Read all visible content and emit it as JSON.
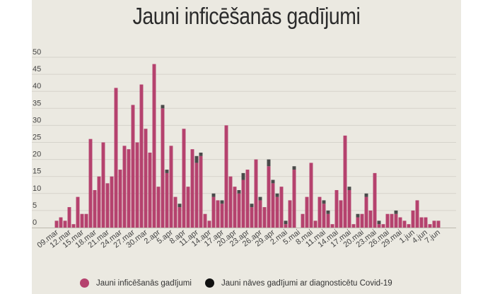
{
  "title": "Jauni inficēšanās gadījumi",
  "colors": {
    "cases": "#b5426e",
    "deaths": "#4a4a4a",
    "background": "#ebe9e1",
    "grid": "#d6d3cb"
  },
  "legend": {
    "cases": "Jauni inficēšanās gadījumi",
    "deaths": "Jauni nāves gadījumi ar diagnosticētu Covid-19"
  },
  "chart_data": {
    "type": "bar",
    "stacked": true,
    "title": "Jauni inficēšanās gadījumi",
    "ylim": [
      0,
      50
    ],
    "yticks": [
      0,
      5,
      10,
      15,
      20,
      25,
      30,
      35,
      40,
      45,
      50
    ],
    "grid": true,
    "legend_position": "bottom",
    "categories": [
      "09.mar",
      "10.mar",
      "11.mar",
      "12.mar",
      "13.mar",
      "14.mar",
      "15.mar",
      "16.mar",
      "17.mar",
      "18.mar",
      "19.mar",
      "20.mar",
      "21.mar",
      "22.mar",
      "23.mar",
      "24.mar",
      "25.mar",
      "26.mar",
      "27.mar",
      "28.mar",
      "29.mar",
      "30.mar",
      "31.mar",
      "1.apr",
      "2.apr",
      "3.apr",
      "4.apr",
      "5.apr",
      "6.apr",
      "7.apr",
      "8.apr",
      "9.apr",
      "10.apr",
      "11.apr",
      "12.apr",
      "13.apr",
      "14.apr",
      "15.apr",
      "16.apr",
      "17.apr",
      "18.apr",
      "19.apr",
      "20.apr",
      "21.apr",
      "22.apr",
      "23.apr",
      "24.apr",
      "25.apr",
      "26.apr",
      "27.apr",
      "28.apr",
      "29.apr",
      "30.apr",
      "1.mai",
      "2.mai",
      "3.mai",
      "4.mai",
      "5.mai",
      "6.mai",
      "7.mai",
      "8.mai",
      "9.mai",
      "10.mai",
      "11.mai",
      "12.mai",
      "13.mai",
      "14.mai",
      "15.mai",
      "16.mai",
      "17.mai",
      "18.mai",
      "19.mai",
      "20.mai",
      "21.mai",
      "22.mai",
      "23.mai",
      "24.mai",
      "25.mai",
      "26.mai",
      "27.mai",
      "28.mai",
      "29.mai",
      "30.mai",
      "31.mai",
      "1.jun",
      "2.jun",
      "3.jun",
      "4.jun",
      "5.jun",
      "6.jun",
      "7.jun"
    ],
    "tick_labels": [
      "09.mar",
      "12.mar",
      "15.mar",
      "18.mar",
      "21.mar",
      "24.mar",
      "27.mar",
      "30.mar",
      "2.apr",
      "5.apr",
      "8.apr",
      "11.apr",
      "14.apr",
      "17.apr",
      "20.apr",
      "23.apr",
      "26.apr",
      "29.apr",
      "2.mai",
      "5.mai",
      "8.mai",
      "11.mai",
      "14.mai",
      "17.mai",
      "20.mai",
      "23.mai",
      "26.mai",
      "29.mai",
      "1.jun",
      "4.jun",
      "7.jun"
    ],
    "series": [
      {
        "name": "Jauni inficēšanās gadījumi",
        "values": [
          2,
          3,
          2,
          6,
          1,
          9,
          4,
          4,
          26,
          11,
          15,
          25,
          13,
          15,
          41,
          17,
          24,
          23,
          36,
          25,
          42,
          29,
          22,
          48,
          12,
          35,
          16,
          24,
          9,
          6,
          29,
          12,
          23,
          19,
          21,
          4,
          2,
          9,
          8,
          7,
          30,
          15,
          12,
          10,
          14,
          17,
          6,
          20,
          8,
          6,
          18,
          13,
          9,
          12,
          1,
          8,
          17,
          0,
          4,
          9,
          19,
          2,
          9,
          7,
          4,
          1,
          11,
          8,
          27,
          11,
          1,
          3,
          4,
          9,
          5,
          16,
          1,
          1,
          4,
          4,
          4,
          3,
          2,
          1,
          5,
          8,
          3,
          3,
          1,
          2,
          2
        ]
      },
      {
        "name": "Jauni nāves gadījumi ar diagnosticētu Covid-19",
        "values": [
          0,
          0,
          0,
          0,
          0,
          0,
          0,
          0,
          0,
          0,
          0,
          0,
          0,
          0,
          0,
          0,
          0,
          0,
          0,
          0,
          0,
          0,
          0,
          0,
          0,
          1,
          1,
          0,
          0,
          1,
          0,
          0,
          0,
          2,
          1,
          0,
          0,
          1,
          0,
          1,
          0,
          0,
          0,
          1,
          2,
          0,
          1,
          0,
          1,
          0,
          2,
          1,
          1,
          0,
          1,
          0,
          1,
          0,
          0,
          0,
          0,
          0,
          0,
          1,
          1,
          0,
          0,
          0,
          0,
          1,
          0,
          1,
          0,
          1,
          0,
          0,
          1,
          0,
          0,
          0,
          1,
          0,
          0,
          0,
          0,
          0,
          0,
          0,
          0,
          0,
          0
        ]
      }
    ]
  }
}
